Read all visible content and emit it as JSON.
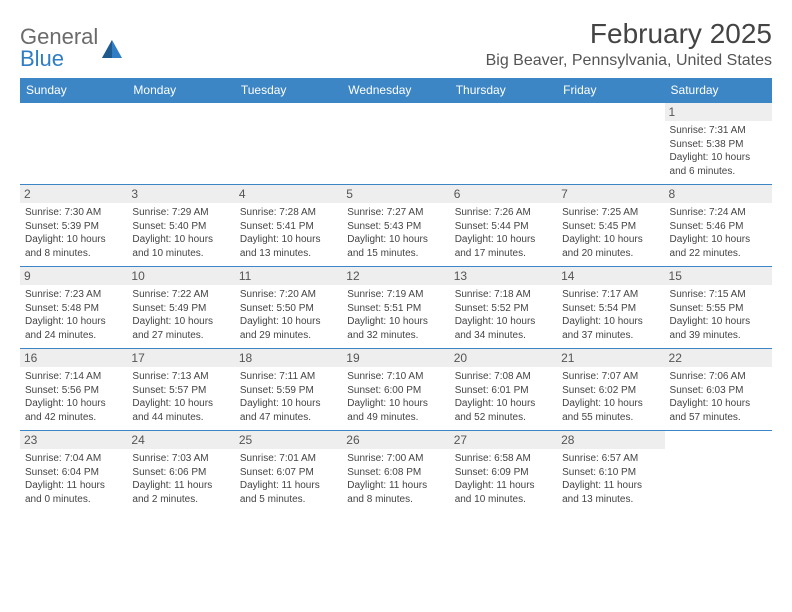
{
  "logo": {
    "text1": "General",
    "text2": "Blue",
    "color_gray": "#6b6b6b",
    "color_blue": "#2f7dc4"
  },
  "title": "February 2025",
  "location": "Big Beaver, Pennsylvania, United States",
  "colors": {
    "header_bg": "#3d86c6",
    "header_text": "#ffffff",
    "daynum_bg": "#eeeeee",
    "daynum_text": "#555555",
    "body_text": "#444444",
    "divider": "#3d86c6",
    "page_bg": "#ffffff"
  },
  "fonts": {
    "title_size": 28,
    "location_size": 16,
    "dayname_size": 12,
    "daynum_size": 12,
    "body_size": 10
  },
  "day_names": [
    "Sunday",
    "Monday",
    "Tuesday",
    "Wednesday",
    "Thursday",
    "Friday",
    "Saturday"
  ],
  "weeks": [
    [
      null,
      null,
      null,
      null,
      null,
      null,
      {
        "n": "1",
        "sunrise": "Sunrise: 7:31 AM",
        "sunset": "Sunset: 5:38 PM",
        "daylight": "Daylight: 10 hours and 6 minutes."
      }
    ],
    [
      {
        "n": "2",
        "sunrise": "Sunrise: 7:30 AM",
        "sunset": "Sunset: 5:39 PM",
        "daylight": "Daylight: 10 hours and 8 minutes."
      },
      {
        "n": "3",
        "sunrise": "Sunrise: 7:29 AM",
        "sunset": "Sunset: 5:40 PM",
        "daylight": "Daylight: 10 hours and 10 minutes."
      },
      {
        "n": "4",
        "sunrise": "Sunrise: 7:28 AM",
        "sunset": "Sunset: 5:41 PM",
        "daylight": "Daylight: 10 hours and 13 minutes."
      },
      {
        "n": "5",
        "sunrise": "Sunrise: 7:27 AM",
        "sunset": "Sunset: 5:43 PM",
        "daylight": "Daylight: 10 hours and 15 minutes."
      },
      {
        "n": "6",
        "sunrise": "Sunrise: 7:26 AM",
        "sunset": "Sunset: 5:44 PM",
        "daylight": "Daylight: 10 hours and 17 minutes."
      },
      {
        "n": "7",
        "sunrise": "Sunrise: 7:25 AM",
        "sunset": "Sunset: 5:45 PM",
        "daylight": "Daylight: 10 hours and 20 minutes."
      },
      {
        "n": "8",
        "sunrise": "Sunrise: 7:24 AM",
        "sunset": "Sunset: 5:46 PM",
        "daylight": "Daylight: 10 hours and 22 minutes."
      }
    ],
    [
      {
        "n": "9",
        "sunrise": "Sunrise: 7:23 AM",
        "sunset": "Sunset: 5:48 PM",
        "daylight": "Daylight: 10 hours and 24 minutes."
      },
      {
        "n": "10",
        "sunrise": "Sunrise: 7:22 AM",
        "sunset": "Sunset: 5:49 PM",
        "daylight": "Daylight: 10 hours and 27 minutes."
      },
      {
        "n": "11",
        "sunrise": "Sunrise: 7:20 AM",
        "sunset": "Sunset: 5:50 PM",
        "daylight": "Daylight: 10 hours and 29 minutes."
      },
      {
        "n": "12",
        "sunrise": "Sunrise: 7:19 AM",
        "sunset": "Sunset: 5:51 PM",
        "daylight": "Daylight: 10 hours and 32 minutes."
      },
      {
        "n": "13",
        "sunrise": "Sunrise: 7:18 AM",
        "sunset": "Sunset: 5:52 PM",
        "daylight": "Daylight: 10 hours and 34 minutes."
      },
      {
        "n": "14",
        "sunrise": "Sunrise: 7:17 AM",
        "sunset": "Sunset: 5:54 PM",
        "daylight": "Daylight: 10 hours and 37 minutes."
      },
      {
        "n": "15",
        "sunrise": "Sunrise: 7:15 AM",
        "sunset": "Sunset: 5:55 PM",
        "daylight": "Daylight: 10 hours and 39 minutes."
      }
    ],
    [
      {
        "n": "16",
        "sunrise": "Sunrise: 7:14 AM",
        "sunset": "Sunset: 5:56 PM",
        "daylight": "Daylight: 10 hours and 42 minutes."
      },
      {
        "n": "17",
        "sunrise": "Sunrise: 7:13 AM",
        "sunset": "Sunset: 5:57 PM",
        "daylight": "Daylight: 10 hours and 44 minutes."
      },
      {
        "n": "18",
        "sunrise": "Sunrise: 7:11 AM",
        "sunset": "Sunset: 5:59 PM",
        "daylight": "Daylight: 10 hours and 47 minutes."
      },
      {
        "n": "19",
        "sunrise": "Sunrise: 7:10 AM",
        "sunset": "Sunset: 6:00 PM",
        "daylight": "Daylight: 10 hours and 49 minutes."
      },
      {
        "n": "20",
        "sunrise": "Sunrise: 7:08 AM",
        "sunset": "Sunset: 6:01 PM",
        "daylight": "Daylight: 10 hours and 52 minutes."
      },
      {
        "n": "21",
        "sunrise": "Sunrise: 7:07 AM",
        "sunset": "Sunset: 6:02 PM",
        "daylight": "Daylight: 10 hours and 55 minutes."
      },
      {
        "n": "22",
        "sunrise": "Sunrise: 7:06 AM",
        "sunset": "Sunset: 6:03 PM",
        "daylight": "Daylight: 10 hours and 57 minutes."
      }
    ],
    [
      {
        "n": "23",
        "sunrise": "Sunrise: 7:04 AM",
        "sunset": "Sunset: 6:04 PM",
        "daylight": "Daylight: 11 hours and 0 minutes."
      },
      {
        "n": "24",
        "sunrise": "Sunrise: 7:03 AM",
        "sunset": "Sunset: 6:06 PM",
        "daylight": "Daylight: 11 hours and 2 minutes."
      },
      {
        "n": "25",
        "sunrise": "Sunrise: 7:01 AM",
        "sunset": "Sunset: 6:07 PM",
        "daylight": "Daylight: 11 hours and 5 minutes."
      },
      {
        "n": "26",
        "sunrise": "Sunrise: 7:00 AM",
        "sunset": "Sunset: 6:08 PM",
        "daylight": "Daylight: 11 hours and 8 minutes."
      },
      {
        "n": "27",
        "sunrise": "Sunrise: 6:58 AM",
        "sunset": "Sunset: 6:09 PM",
        "daylight": "Daylight: 11 hours and 10 minutes."
      },
      {
        "n": "28",
        "sunrise": "Sunrise: 6:57 AM",
        "sunset": "Sunset: 6:10 PM",
        "daylight": "Daylight: 11 hours and 13 minutes."
      },
      null
    ]
  ]
}
